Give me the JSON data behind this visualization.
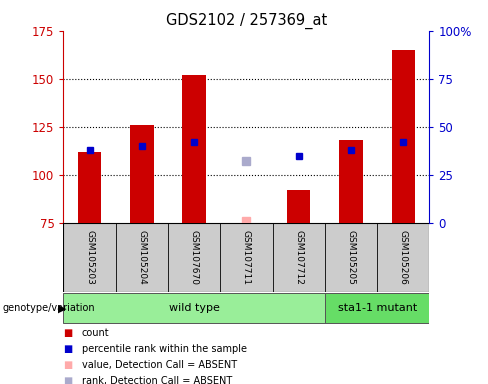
{
  "title": "GDS2102 / 257369_at",
  "samples": [
    "GSM105203",
    "GSM105204",
    "GSM107670",
    "GSM107711",
    "GSM107712",
    "GSM105205",
    "GSM105206"
  ],
  "bar_values": [
    112,
    126,
    152,
    null,
    92,
    118,
    165
  ],
  "bar_color": "#cc0000",
  "blue_square_values": [
    113,
    115,
    117,
    null,
    110,
    113,
    117
  ],
  "blue_square_color": "#0000cc",
  "absent_value_values": [
    null,
    null,
    null,
    76,
    null,
    null,
    null
  ],
  "absent_rank_values": [
    null,
    null,
    null,
    107,
    null,
    null,
    null
  ],
  "absent_value_color": "#ffaaaa",
  "absent_rank_color": "#aaaacc",
  "ylim_left": [
    75,
    175
  ],
  "ylim_right": [
    0,
    100
  ],
  "yticks_left": [
    75,
    100,
    125,
    150,
    175
  ],
  "yticks_right": [
    0,
    25,
    50,
    75,
    100
  ],
  "ytick_labels_right": [
    "0",
    "25",
    "50",
    "75",
    "100%"
  ],
  "left_tick_color": "#cc0000",
  "right_tick_color": "#0000cc",
  "groups": [
    {
      "label": "wild type",
      "indices": [
        0,
        1,
        2,
        3,
        4
      ],
      "color": "#99ee99"
    },
    {
      "label": "sta1-1 mutant",
      "indices": [
        5,
        6
      ],
      "color": "#66dd66"
    }
  ],
  "genotype_label": "genotype/variation",
  "legend_items": [
    {
      "color": "#cc0000",
      "label": "count"
    },
    {
      "color": "#0000cc",
      "label": "percentile rank within the sample"
    },
    {
      "color": "#ffaaaa",
      "label": "value, Detection Call = ABSENT"
    },
    {
      "color": "#aaaacc",
      "label": "rank, Detection Call = ABSENT"
    }
  ],
  "background_color": "#ffffff",
  "plot_bg_color": "#ffffff",
  "bar_bottom": 75,
  "bar_width": 0.45,
  "dotted_lines": [
    100,
    125,
    150
  ]
}
